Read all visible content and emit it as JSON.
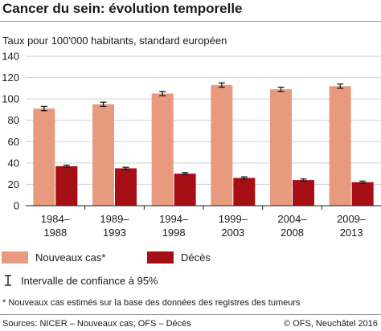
{
  "chart_data": {
    "type": "bar",
    "title": "Cancer du sein: évolution temporelle",
    "ylabel": "Taux pour 100'000 habitants, standard européen",
    "ylim": [
      0,
      140
    ],
    "yticks": [
      0,
      20,
      40,
      60,
      80,
      100,
      120,
      140
    ],
    "grid": true,
    "categories": [
      [
        "1984–",
        "1988"
      ],
      [
        "1989–",
        "1993"
      ],
      [
        "1994–",
        "1998"
      ],
      [
        "1999–",
        "2003"
      ],
      [
        "2004–",
        "2008"
      ],
      [
        "2009–",
        "2013"
      ]
    ],
    "series": [
      {
        "name": "Nouveaux cas*",
        "color": "#e89a7f",
        "values": [
          91,
          95,
          105,
          113,
          109,
          112
        ],
        "ci_low": [
          89,
          93,
          103,
          111,
          107,
          110
        ],
        "ci_high": [
          93,
          97,
          107,
          115,
          111,
          114
        ]
      },
      {
        "name": "Décès",
        "color": "#a50f15",
        "values": [
          37,
          35,
          30,
          26,
          24,
          22
        ],
        "ci_low": [
          36,
          34,
          29,
          25,
          23,
          21
        ],
        "ci_high": [
          38,
          36,
          31,
          27,
          25,
          23
        ]
      }
    ],
    "legend_position": "bottom-left",
    "ci_legend_label": "Intervalle de confiance à 95%",
    "footnote": "* Nouveaux cas estimés sur la base des données des registres des tumeurs",
    "source": "Sources: NICER – Nouveaux cas; OFS – Décès",
    "copyright": "© OFS, Neuchâtel 2016"
  }
}
